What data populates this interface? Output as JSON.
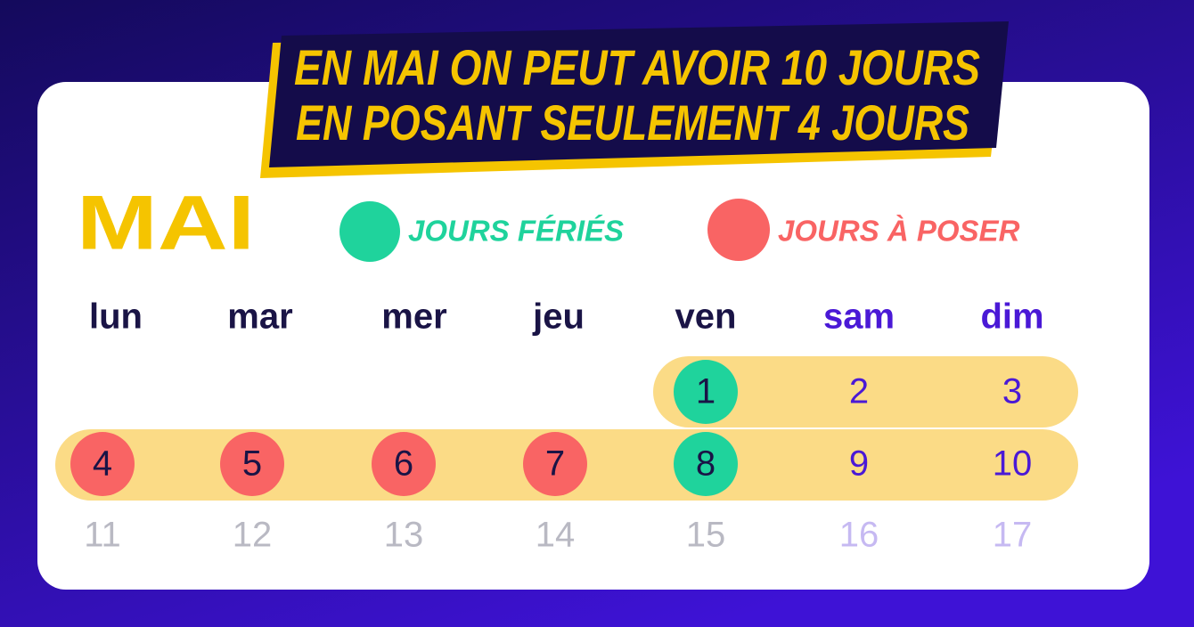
{
  "banner": {
    "lines": [
      "EN MAI ON PEUT AVOIR 10 JOURS",
      "EN POSANT SEULEMENT 4 JOURS"
    ]
  },
  "month": "MAI",
  "legend": [
    {
      "label": "JOURS FÉRIÉS"
    },
    {
      "label": "JOURS À POSER"
    }
  ],
  "weekdays": [
    "lun",
    "mar",
    "mer",
    "jeu",
    "ven",
    "sam",
    "dim"
  ],
  "weeks": [
    [
      1,
      2,
      3
    ],
    [
      4,
      5,
      6,
      7,
      8,
      9,
      10
    ],
    [
      11,
      12,
      13,
      14,
      15,
      16,
      17
    ]
  ]
}
